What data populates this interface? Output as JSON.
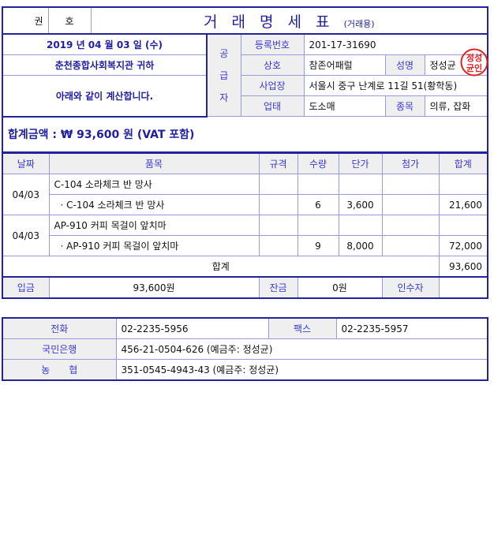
{
  "header": {
    "gwon": "권",
    "ho": "호",
    "title": "거 래 명 세 표",
    "subtitle": "(거래용)"
  },
  "left": {
    "date": "2019 년 04 월 03 일 (수)",
    "recipient": "춘천종합사회복지관 귀하",
    "message": "아래와 같이 계산합니다."
  },
  "supplier": {
    "section_label": [
      "공",
      "급",
      "자"
    ],
    "reg_label": "등록번호",
    "reg_value": "201-17-31690",
    "name_label": "상호",
    "name_value": "참존어패럴",
    "owner_label": "성명",
    "owner_value": "정성균",
    "addr_label": "사업장",
    "addr_value": "서울시 중구 난계로 11길 51(황학동)",
    "type_label": "업태",
    "type_value": "도소매",
    "item_label": "종목",
    "item_value": "의류, 잡화",
    "stamp_text": "정성균인"
  },
  "total_amount": "합계금액 : ₩ 93,600 원 (VAT 포함)",
  "items": {
    "headers": [
      "날짜",
      "품목",
      "규격",
      "수량",
      "단가",
      "첨가",
      "합계"
    ],
    "groups": [
      {
        "date": "04/03",
        "name": "C-104 소라체크 반 망사",
        "sub": "· C-104 소라체크 반 망사",
        "spec": "",
        "qty": "6",
        "price": "3,600",
        "extra": "",
        "sum": "21,600"
      },
      {
        "date": "04/03",
        "name": "AP-910 커피 목걸이 앞치마",
        "sub": "· AP-910 커피 목걸이 앞치마",
        "spec": "",
        "qty": "9",
        "price": "8,000",
        "extra": "",
        "sum": "72,000"
      }
    ],
    "total_label": "합계",
    "total_value": "93,600"
  },
  "payment": {
    "deposit_label": "입금",
    "deposit_value": "93,600원",
    "balance_label": "잔금",
    "balance_value": "0원",
    "receiver_label": "인수자",
    "receiver_value": ""
  },
  "contact": {
    "phone_label": "전화",
    "phone_value": "02-2235-5956",
    "fax_label": "팩스",
    "fax_value": "02-2235-5957",
    "bank1_label": "국민은행",
    "bank1_value": "456-21-0504-626 (예금주: 정성균)",
    "bank2_label": "농　　협",
    "bank2_value": "351-0545-4943-43 (예금주: 정성균)"
  },
  "colors": {
    "border": "#23239a",
    "label_text": "#3a3acf",
    "label_bg": "#efefef",
    "stamp": "#d22"
  }
}
